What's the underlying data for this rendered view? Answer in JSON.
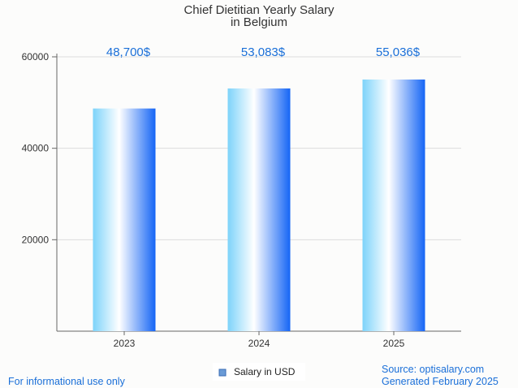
{
  "chart_data": {
    "type": "bar",
    "title_lines": [
      "Chief Dietitian Yearly Salary",
      "in Belgium"
    ],
    "categories": [
      "2023",
      "2024",
      "2025"
    ],
    "series": [
      {
        "name": "Salary in USD",
        "values": [
          48700,
          53083,
          55036
        ],
        "value_labels": [
          "48,700$",
          "53,083$",
          "55,036$"
        ]
      }
    ],
    "ylim": [
      0,
      60000
    ],
    "yticks": [
      20000,
      40000,
      60000
    ],
    "grid": true,
    "legend_position": "bottom"
  },
  "footer": {
    "disclaimer": "For informational use only",
    "source": "Source: optisalary.com",
    "generated": "Generated February 2025"
  },
  "colors": {
    "accent": "#1a6fd8",
    "bar_dark": "#1565f5",
    "bar_light": "#ffffff",
    "bar_cyan": "#7dd3fa",
    "grid": "#dddddd",
    "axis": "#666666"
  }
}
